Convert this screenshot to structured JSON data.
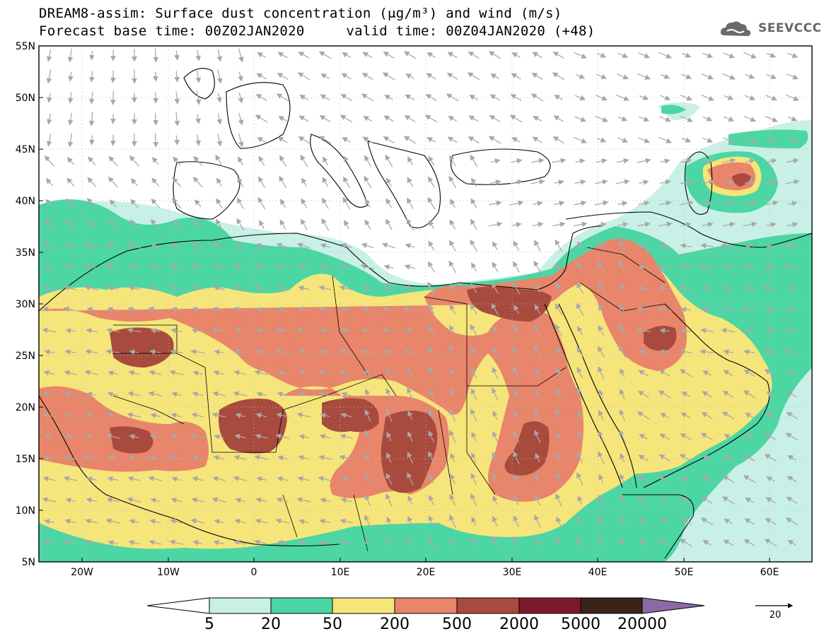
{
  "header": {
    "title_line1": "DREAM8-assim: Surface dust concentration (μg/m³) and wind (m/s)",
    "title_line2": "Forecast base time: 00Z02JAN2020     valid time: 00Z04JAN2020 (+48)",
    "logo_text": "SEEVCCC"
  },
  "axes": {
    "lat_labels": [
      "55N",
      "50N",
      "45N",
      "40N",
      "35N",
      "30N",
      "25N",
      "20N",
      "15N",
      "10N",
      "5N"
    ],
    "lon_labels": [
      "20W",
      "10W",
      "0",
      "10E",
      "20E",
      "30E",
      "40E",
      "50E",
      "60E"
    ]
  },
  "colorbar": {
    "labels": [
      "5",
      "20",
      "50",
      "200",
      "500",
      "2000",
      "5000",
      "20000"
    ],
    "colors": [
      "#c8f0e6",
      "#4cd6a4",
      "#f6e57a",
      "#e8856a",
      "#a84a3e",
      "#7d1a2a",
      "#3a2418",
      "#8c6aa8"
    ]
  },
  "wind_reference": {
    "label": "20"
  },
  "colors": {
    "arrow": "#aaaaaa",
    "coast": "#000000",
    "frame": "#000000"
  }
}
